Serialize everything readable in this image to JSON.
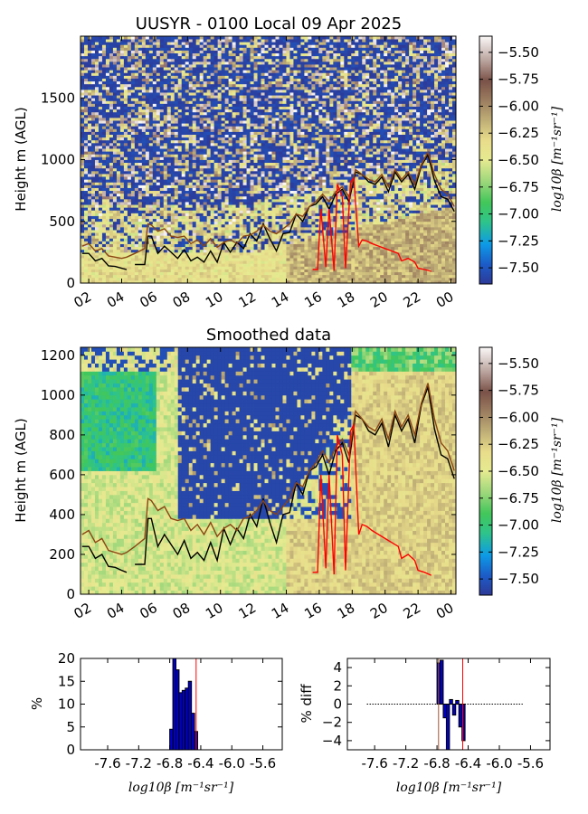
{
  "figure": {
    "top_title": "UUSYR - 0100 Local 09 Apr 2025",
    "mid_title": "Smoothed data",
    "ylabel": "Height m (AGL)",
    "colorbar_label": "log10β [m⁻¹sr⁻¹]",
    "colorbar_ticks": [
      "−5.50",
      "−5.75",
      "−6.00",
      "−6.25",
      "−6.50",
      "−6.75",
      "−7.00",
      "−7.25",
      "−7.50"
    ],
    "colorbar_values": [
      -5.5,
      -5.75,
      -6.0,
      -6.25,
      -6.5,
      -6.75,
      -7.0,
      -7.25,
      -7.5
    ],
    "colorbar_range": [
      -7.65,
      -5.35
    ],
    "hist_xlabel": "log10β [m⁻¹sr⁻¹]",
    "hist_left_ylabel": "%",
    "hist_right_ylabel": "% diff",
    "colors": {
      "line_black": "#000000",
      "line_brown": "#8b4513",
      "line_red": "#ff0000",
      "bar_blue": "#0000cc",
      "vline_red": "#ff0000",
      "vline_brown": "#a0522d"
    }
  },
  "chart_data": [
    {
      "type": "heatmap",
      "title": "UUSYR - 0100 Local 09 Apr 2025",
      "ylabel": "Height m (AGL)",
      "xlabel": "",
      "x_ticks": [
        "02",
        "04",
        "06",
        "08",
        "10",
        "12",
        "14",
        "16",
        "18",
        "20",
        "22",
        "00"
      ],
      "x_tick_hours": [
        2,
        4,
        6,
        8,
        10,
        12,
        14,
        16,
        18,
        20,
        22,
        24
      ],
      "xlim": [
        1.5,
        24.3
      ],
      "y_ticks": [
        "0",
        "500",
        "1000",
        "1500"
      ],
      "y_tick_values": [
        0,
        500,
        1000,
        1500
      ],
      "ylim": [
        0,
        2000
      ],
      "colorbar": "log10β [m⁻¹sr⁻¹]",
      "series": [
        {
          "color": "black",
          "x": [
            1.6,
            2.0,
            2.4,
            2.8,
            3.2,
            3.6,
            4.0,
            4.3
          ],
          "y": [
            240,
            240,
            180,
            200,
            140,
            135,
            120,
            110
          ]
        },
        {
          "color": "black",
          "x": [
            4.8,
            5.4,
            5.6,
            5.8,
            6.2,
            6.6,
            7.0,
            7.4,
            7.8,
            8.2,
            8.6,
            9.0,
            9.4,
            9.8,
            10.2,
            10.6,
            11.0,
            11.4,
            11.8,
            12.2,
            12.6,
            13.0,
            13.4,
            13.8,
            14.2,
            14.6,
            15.0,
            15.4,
            15.8,
            16.2,
            16.6,
            17.0,
            17.4,
            17.8,
            18.2,
            18.6,
            19.0,
            19.4,
            19.8,
            20.2,
            20.6,
            21.0,
            21.4,
            21.8,
            22.2,
            22.6,
            23.0,
            23.4,
            23.8,
            24.2
          ],
          "y": [
            150,
            150,
            380,
            380,
            240,
            300,
            250,
            200,
            270,
            180,
            210,
            170,
            260,
            170,
            330,
            250,
            330,
            280,
            400,
            340,
            480,
            360,
            260,
            400,
            410,
            560,
            500,
            620,
            640,
            700,
            600,
            720,
            760,
            660,
            900,
            880,
            820,
            800,
            860,
            740,
            900,
            820,
            880,
            760,
            950,
            1040,
            830,
            700,
            680,
            580
          ]
        },
        {
          "color": "brown",
          "x": [
            1.6,
            2.0,
            2.4,
            2.8,
            3.2,
            3.6,
            4.0,
            4.3,
            4.8,
            5.4,
            5.6,
            5.8,
            6.2,
            6.6,
            7.0,
            7.4,
            7.8,
            8.2,
            8.6,
            9.0,
            9.4,
            9.8,
            10.2,
            10.6,
            11.0,
            11.4,
            11.8,
            12.2,
            12.6,
            13.0,
            13.4,
            13.8,
            14.2,
            14.6,
            15.0,
            15.4,
            15.8,
            16.2,
            16.6,
            17.0,
            17.4,
            17.8,
            18.2,
            18.6,
            19.0,
            19.4,
            19.8,
            20.2,
            20.6,
            21.0,
            21.4,
            21.8,
            22.2,
            22.6,
            23.0,
            23.4,
            23.8,
            24.2
          ],
          "y": [
            300,
            320,
            260,
            280,
            220,
            210,
            200,
            210,
            240,
            280,
            480,
            470,
            420,
            440,
            380,
            370,
            380,
            320,
            350,
            300,
            360,
            290,
            330,
            350,
            320,
            380,
            390,
            420,
            470,
            420,
            400,
            440,
            480,
            560,
            540,
            620,
            660,
            720,
            660,
            740,
            780,
            700,
            920,
            880,
            840,
            820,
            880,
            780,
            920,
            840,
            900,
            800,
            960,
            1060,
            880,
            760,
            720,
            620
          ]
        },
        {
          "color": "red",
          "x": [
            15.6,
            15.9,
            16.1,
            16.4,
            16.6,
            16.9,
            17.1,
            17.4,
            17.6,
            17.9,
            18.1,
            18.4,
            18.6,
            18.9,
            19.2,
            19.6,
            20.0,
            20.4,
            20.8,
            21.0,
            21.4,
            21.8,
            22.0,
            22.4,
            22.8
          ],
          "y": [
            110,
            110,
            600,
            130,
            600,
            100,
            800,
            700,
            120,
            820,
            850,
            300,
            350,
            340,
            320,
            300,
            280,
            260,
            240,
            180,
            200,
            170,
            120,
            110,
            95
          ]
        }
      ]
    },
    {
      "type": "heatmap",
      "title": "Smoothed data",
      "ylabel": "Height m (AGL)",
      "xlabel": "",
      "x_ticks": [
        "02",
        "04",
        "06",
        "08",
        "10",
        "12",
        "14",
        "16",
        "18",
        "20",
        "22",
        "00"
      ],
      "x_tick_hours": [
        2,
        4,
        6,
        8,
        10,
        12,
        14,
        16,
        18,
        20,
        22,
        24
      ],
      "xlim": [
        1.5,
        24.3
      ],
      "y_ticks": [
        "0",
        "200",
        "400",
        "600",
        "800",
        "1000",
        "1200"
      ],
      "y_tick_values": [
        0,
        200,
        400,
        600,
        800,
        1000,
        1200
      ],
      "ylim": [
        0,
        1240
      ],
      "colorbar": "log10β [m⁻¹sr⁻¹]"
    },
    {
      "type": "bar",
      "xlabel": "log10β [m⁻¹sr⁻¹]",
      "ylabel": "%",
      "x_ticks": [
        "-7.6",
        "-7.2",
        "-6.8",
        "-6.4",
        "-6.0",
        "-5.6"
      ],
      "x_tick_values": [
        -7.6,
        -7.2,
        -6.8,
        -6.4,
        -6.0,
        -5.6
      ],
      "xlim": [
        -7.95,
        -5.35
      ],
      "y_ticks": [
        "0",
        "5",
        "10",
        "15",
        "20"
      ],
      "y_tick_values": [
        0,
        5,
        10,
        15,
        20
      ],
      "ylim": [
        0,
        20
      ],
      "bin_width": 0.04,
      "x": [
        -6.78,
        -6.74,
        -6.7,
        -6.66,
        -6.62,
        -6.58,
        -6.54,
        -6.5,
        -6.46
      ],
      "values": [
        4.5,
        20,
        17.5,
        12.5,
        13,
        13.5,
        15,
        8,
        4
      ],
      "vlines": [
        -6.46
      ]
    },
    {
      "type": "bar",
      "xlabel": "log10β [m⁻¹sr⁻¹]",
      "ylabel": "% diff",
      "x_ticks": [
        "-7.6",
        "-7.2",
        "-6.8",
        "-6.4",
        "-6.0",
        "-5.6"
      ],
      "x_tick_values": [
        -7.6,
        -7.2,
        -6.8,
        -6.4,
        -6.0,
        -5.6
      ],
      "xlim": [
        -7.95,
        -5.35
      ],
      "y_ticks": [
        "4",
        "2",
        "0",
        "−2",
        "−4"
      ],
      "y_tick_values": [
        4,
        2,
        0,
        -2,
        -4
      ],
      "ylim": [
        -5,
        5
      ],
      "bin_width": 0.04,
      "x": [
        -6.78,
        -6.74,
        -6.7,
        -6.66,
        -6.62,
        -6.58,
        -6.54,
        -6.5,
        -6.46
      ],
      "values": [
        4.5,
        4.8,
        -1.5,
        -5,
        0.5,
        -1.2,
        0.4,
        -2.5,
        -4
      ],
      "zero_line": {
        "x_from": -7.7,
        "x_to": -5.7,
        "style": "dotted"
      },
      "vlines": [
        -6.78,
        -6.47
      ]
    }
  ]
}
